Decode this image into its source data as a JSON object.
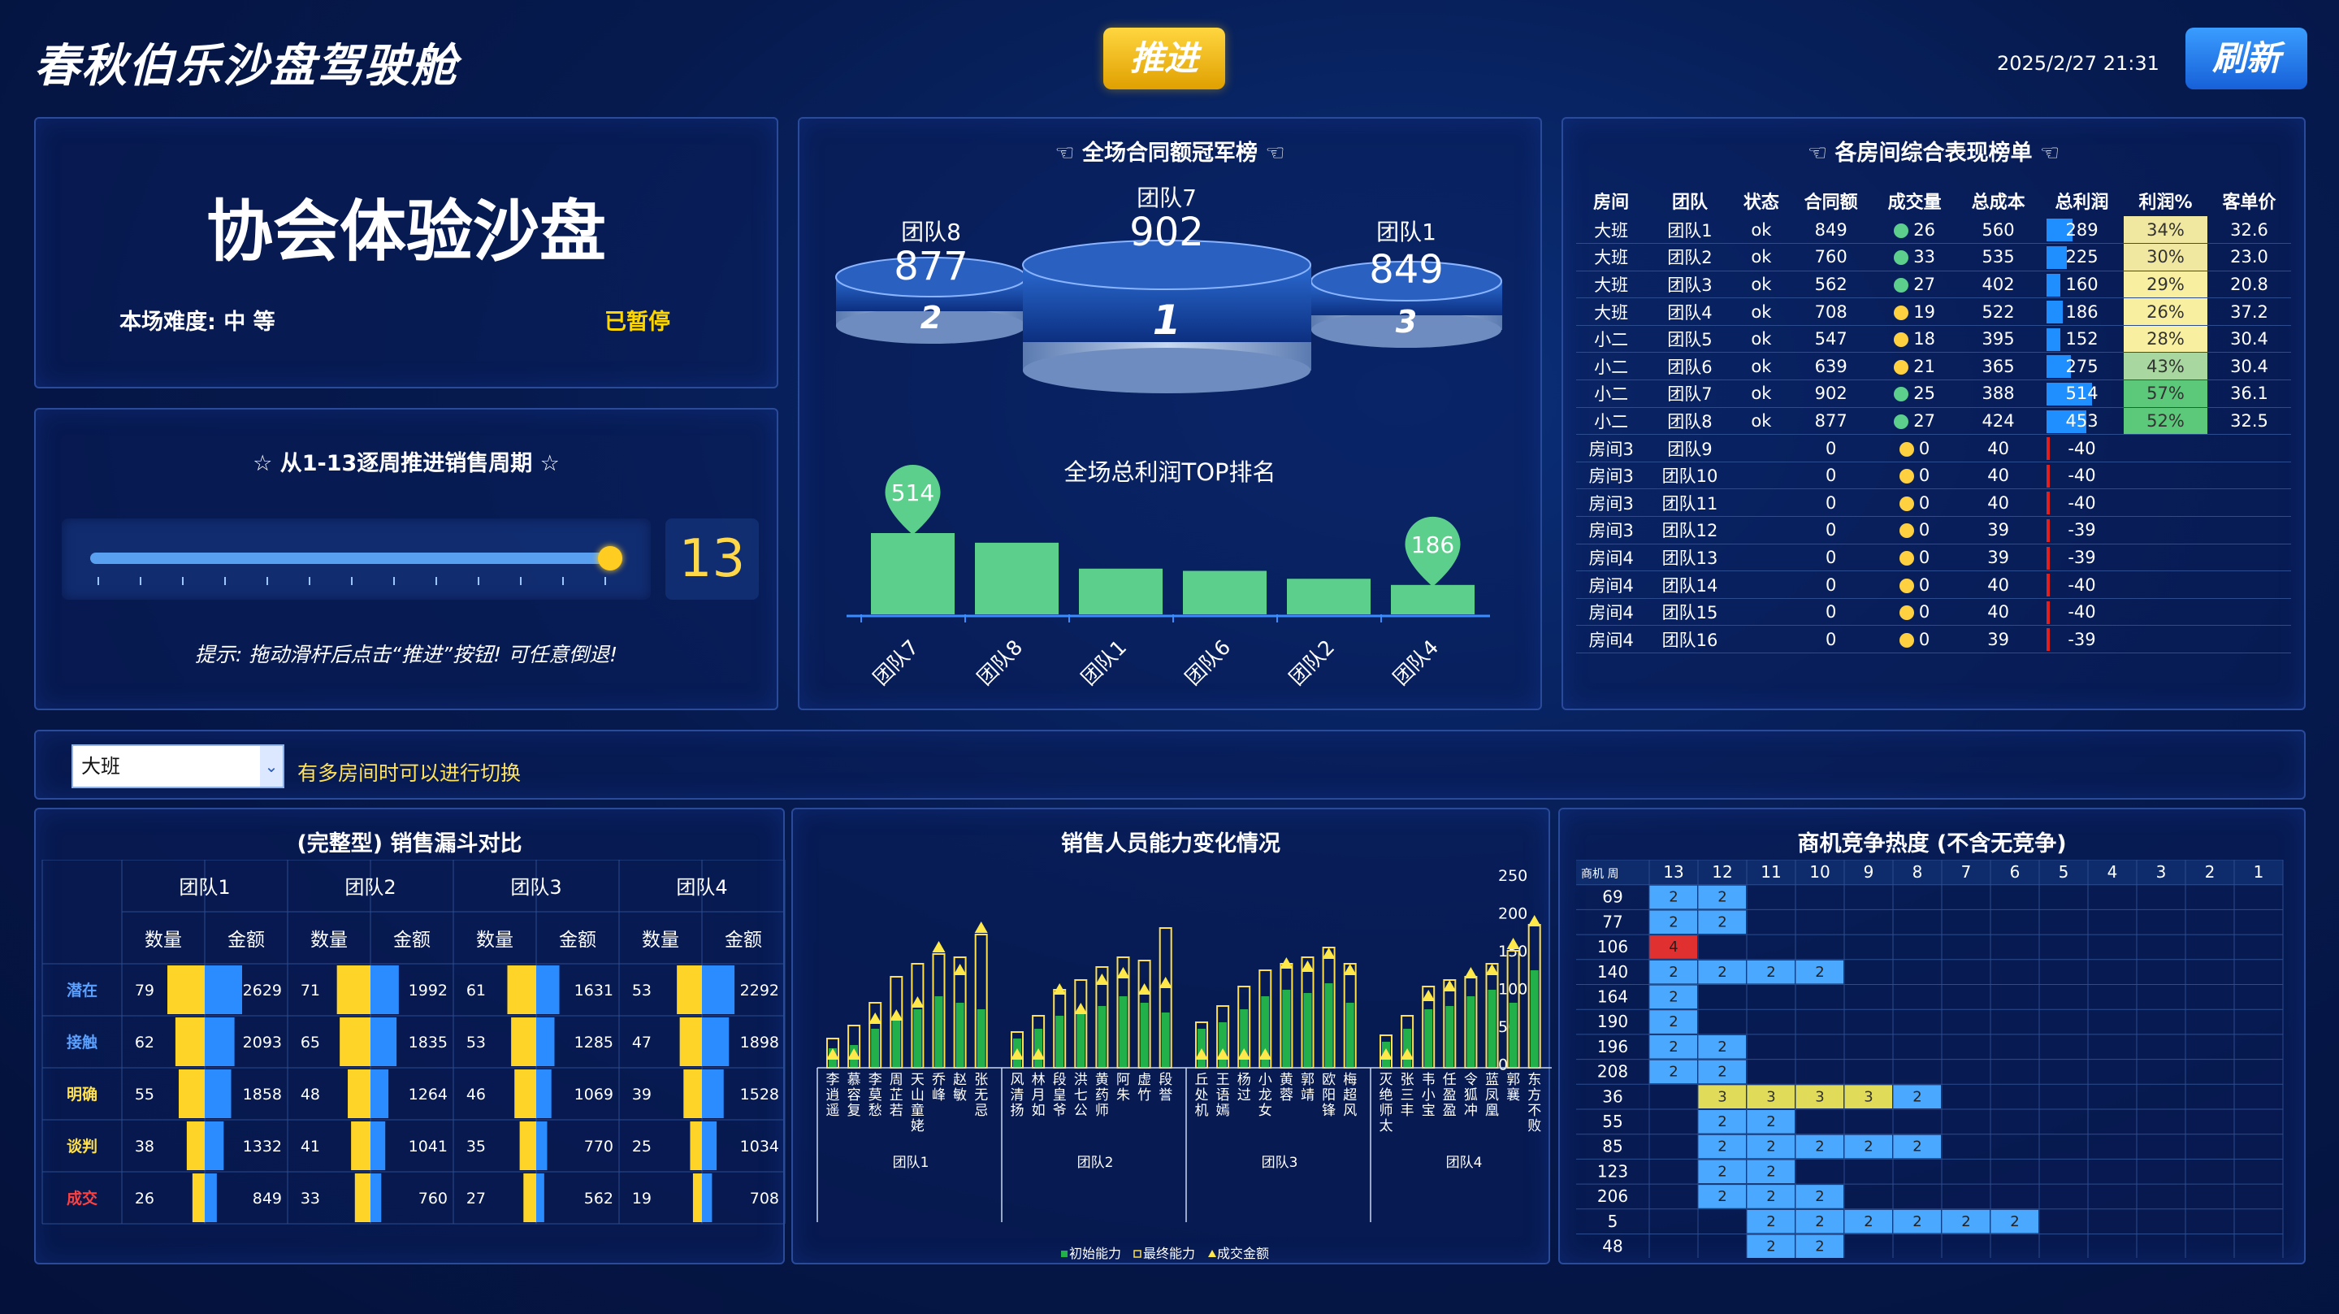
{
  "header": {
    "title": "春秋伯乐沙盘驾驶舱",
    "push_label": "推进",
    "refresh_label": "刷新",
    "datetime": "2025/2/27 21:31"
  },
  "sim": {
    "title": "协会体验沙盘",
    "difficulty": "本场难度: 中 等",
    "status": "已暂停"
  },
  "week": {
    "title": "☆ 从1-13逐周推进销售周期 ☆",
    "value": "13",
    "current_week": 13,
    "max_week": 13,
    "hint": "提示: 拖动滑杆后点击“推进”按钮! 可任意倒退!"
  },
  "podium": {
    "title": "全场合同额冠军榜",
    "first": {
      "name": "团队7",
      "value": "902",
      "rank": "1"
    },
    "second": {
      "name": "团队8",
      "value": "877",
      "rank": "2"
    },
    "third": {
      "name": "团队1",
      "value": "849",
      "rank": "3"
    }
  },
  "profit_chart": {
    "title": "全场总利润TOP排名",
    "chart_data": {
      "type": "bar",
      "categories": [
        "团队7",
        "团队8",
        "团队1",
        "团队6",
        "团队2",
        "团队4"
      ],
      "values": [
        514,
        453,
        289,
        275,
        225,
        186
      ],
      "markers": [
        "514",
        "186"
      ]
    }
  },
  "rank": {
    "title": "各房间综合表现榜单",
    "headers": [
      "房间",
      "团队",
      "状态",
      "合同额",
      "成交量",
      "总成本",
      "总利润",
      "利润%",
      "客单价"
    ],
    "rows": [
      [
        "大班",
        "团队1",
        "ok",
        "849",
        "26",
        "560",
        "289",
        "34%",
        "32.6"
      ],
      [
        "大班",
        "团队2",
        "ok",
        "760",
        "33",
        "535",
        "225",
        "30%",
        "23.0"
      ],
      [
        "大班",
        "团队3",
        "ok",
        "562",
        "27",
        "402",
        "160",
        "29%",
        "20.8"
      ],
      [
        "大班",
        "团队4",
        "ok",
        "708",
        "19",
        "522",
        "186",
        "26%",
        "37.2"
      ],
      [
        "小二",
        "团队5",
        "ok",
        "547",
        "18",
        "395",
        "152",
        "28%",
        "30.4"
      ],
      [
        "小二",
        "团队6",
        "ok",
        "639",
        "21",
        "365",
        "275",
        "43%",
        "30.4"
      ],
      [
        "小二",
        "团队7",
        "ok",
        "902",
        "25",
        "388",
        "514",
        "57%",
        "36.1"
      ],
      [
        "小二",
        "团队8",
        "ok",
        "877",
        "27",
        "424",
        "453",
        "52%",
        "32.5"
      ],
      [
        "房间3",
        "团队9",
        "",
        "0",
        "0",
        "40",
        "-40",
        "",
        ""
      ],
      [
        "房间3",
        "团队10",
        "",
        "0",
        "0",
        "40",
        "-40",
        "",
        ""
      ],
      [
        "房间3",
        "团队11",
        "",
        "0",
        "0",
        "40",
        "-40",
        "",
        ""
      ],
      [
        "房间3",
        "团队12",
        "",
        "0",
        "0",
        "39",
        "-39",
        "",
        ""
      ],
      [
        "房间4",
        "团队13",
        "",
        "0",
        "0",
        "39",
        "-39",
        "",
        ""
      ],
      [
        "房间4",
        "团队14",
        "",
        "0",
        "0",
        "40",
        "-40",
        "",
        ""
      ],
      [
        "房间4",
        "团队15",
        "",
        "0",
        "0",
        "40",
        "-40",
        "",
        ""
      ],
      [
        "房间4",
        "团队16",
        "",
        "0",
        "0",
        "39",
        "-39",
        "",
        ""
      ]
    ]
  },
  "room": {
    "selected": "大班",
    "hint": "有多房间时可以进行切换"
  },
  "funnel": {
    "title": "(完整型) 销售漏斗对比",
    "teams": [
      "团队1",
      "团队2",
      "团队3",
      "团队4"
    ],
    "count_label": "数量",
    "amount_label": "金额",
    "stages": [
      "潜在",
      "接触",
      "明确",
      "谈判",
      "成交"
    ],
    "data": [
      [
        [
          79,
          2629
        ],
        [
          62,
          2093
        ],
        [
          55,
          1858
        ],
        [
          38,
          1332
        ],
        [
          26,
          849
        ]
      ],
      [
        [
          71,
          1992
        ],
        [
          65,
          1835
        ],
        [
          48,
          1264
        ],
        [
          41,
          1041
        ],
        [
          33,
          760
        ]
      ],
      [
        [
          61,
          1631
        ],
        [
          53,
          1285
        ],
        [
          46,
          1069
        ],
        [
          35,
          770
        ],
        [
          27,
          562
        ]
      ],
      [
        [
          53,
          2292
        ],
        [
          47,
          1898
        ],
        [
          39,
          1528
        ],
        [
          25,
          1034
        ],
        [
          19,
          708
        ]
      ]
    ]
  },
  "ability": {
    "title": "销售人员能力变化情况",
    "legend": [
      "初始能力",
      "最终能力",
      "成交金额"
    ],
    "yticks": [
      "250",
      "200",
      "150",
      "100",
      "50",
      "0"
    ],
    "groups": [
      {
        "team": "团队1",
        "people": [
          "李逍遥",
          "慕容复",
          "李莫愁",
          "周芷若",
          "天山童姥",
          "乔峰",
          "赵敏",
          "张无忌"
        ]
      },
      {
        "team": "团队2",
        "people": [
          "风清扬",
          "林月如",
          "段皇爷",
          "洪七公",
          "黄药师",
          "阿朱",
          "虚竹",
          "段誉"
        ]
      },
      {
        "team": "团队3",
        "people": [
          "丘处机",
          "王语嫣",
          "杨过",
          "小龙女",
          "黄蓉",
          "郭靖",
          "欧阳锋",
          "梅超风"
        ]
      },
      {
        "team": "团队4",
        "people": [
          "灭绝师太",
          "张三丰",
          "韦小宝",
          "任盈盈",
          "令狐冲",
          "蓝凤凰",
          "郭襄",
          "东方不败"
        ]
      }
    ],
    "chart_data": {
      "type": "bar",
      "init": [
        30,
        35,
        60,
        80,
        90,
        110,
        100,
        90,
        45,
        60,
        80,
        90,
        95,
        110,
        100,
        85,
        60,
        70,
        90,
        110,
        120,
        115,
        130,
        100,
        40,
        60,
        90,
        95,
        110,
        120,
        100,
        150
      ],
      "final": [
        45,
        65,
        100,
        140,
        160,
        175,
        170,
        205,
        55,
        80,
        120,
        135,
        155,
        170,
        165,
        215,
        70,
        95,
        125,
        150,
        160,
        170,
        185,
        160,
        50,
        80,
        125,
        135,
        140,
        160,
        180,
        220
      ],
      "deal": [
        20,
        20,
        75,
        80,
        100,
        185,
        150,
        215,
        20,
        20,
        120,
        90,
        135,
        145,
        120,
        130,
        20,
        20,
        20,
        20,
        160,
        155,
        175,
        150,
        20,
        20,
        110,
        125,
        145,
        150,
        190,
        225
      ]
    }
  },
  "heat": {
    "title": "商机竞争热度 (不含无竞争)",
    "corner": "商机 周",
    "weeks": [
      "13",
      "12",
      "11",
      "10",
      "9",
      "8",
      "7",
      "6",
      "5",
      "4",
      "3",
      "2",
      "1"
    ],
    "rows": [
      {
        "id": "69",
        "cells": [
          "2",
          "2"
        ]
      },
      {
        "id": "77",
        "cells": [
          "2",
          "2"
        ]
      },
      {
        "id": "106",
        "cells": [
          "4"
        ]
      },
      {
        "id": "140",
        "cells": [
          "2",
          "2",
          "2",
          "2"
        ]
      },
      {
        "id": "164",
        "cells": [
          "2"
        ]
      },
      {
        "id": "190",
        "cells": [
          "2"
        ]
      },
      {
        "id": "196",
        "cells": [
          "2",
          "2"
        ]
      },
      {
        "id": "208",
        "cells": [
          "2",
          "2"
        ]
      },
      {
        "id": "36",
        "cells": [
          "",
          "3",
          "3",
          "3",
          "3",
          "2"
        ]
      },
      {
        "id": "55",
        "cells": [
          "",
          "2",
          "2"
        ]
      },
      {
        "id": "85",
        "cells": [
          "",
          "2",
          "2",
          "2",
          "2",
          "2"
        ]
      },
      {
        "id": "123",
        "cells": [
          "",
          "2",
          "2"
        ]
      },
      {
        "id": "206",
        "cells": [
          "",
          "2",
          "2",
          "2"
        ]
      },
      {
        "id": "5",
        "cells": [
          "",
          "",
          "2",
          "2",
          "2",
          "2",
          "2",
          "2"
        ]
      },
      {
        "id": "48",
        "cells": [
          "",
          "",
          "2",
          "2"
        ]
      }
    ]
  },
  "colors": {
    "accent": "#ffd700",
    "green": "#5ccf8c",
    "blue": "#1f8fff",
    "heat_blue": "#4aa8ff",
    "heat_yellow": "#e0dc5a",
    "heat_red": "#e03030"
  }
}
